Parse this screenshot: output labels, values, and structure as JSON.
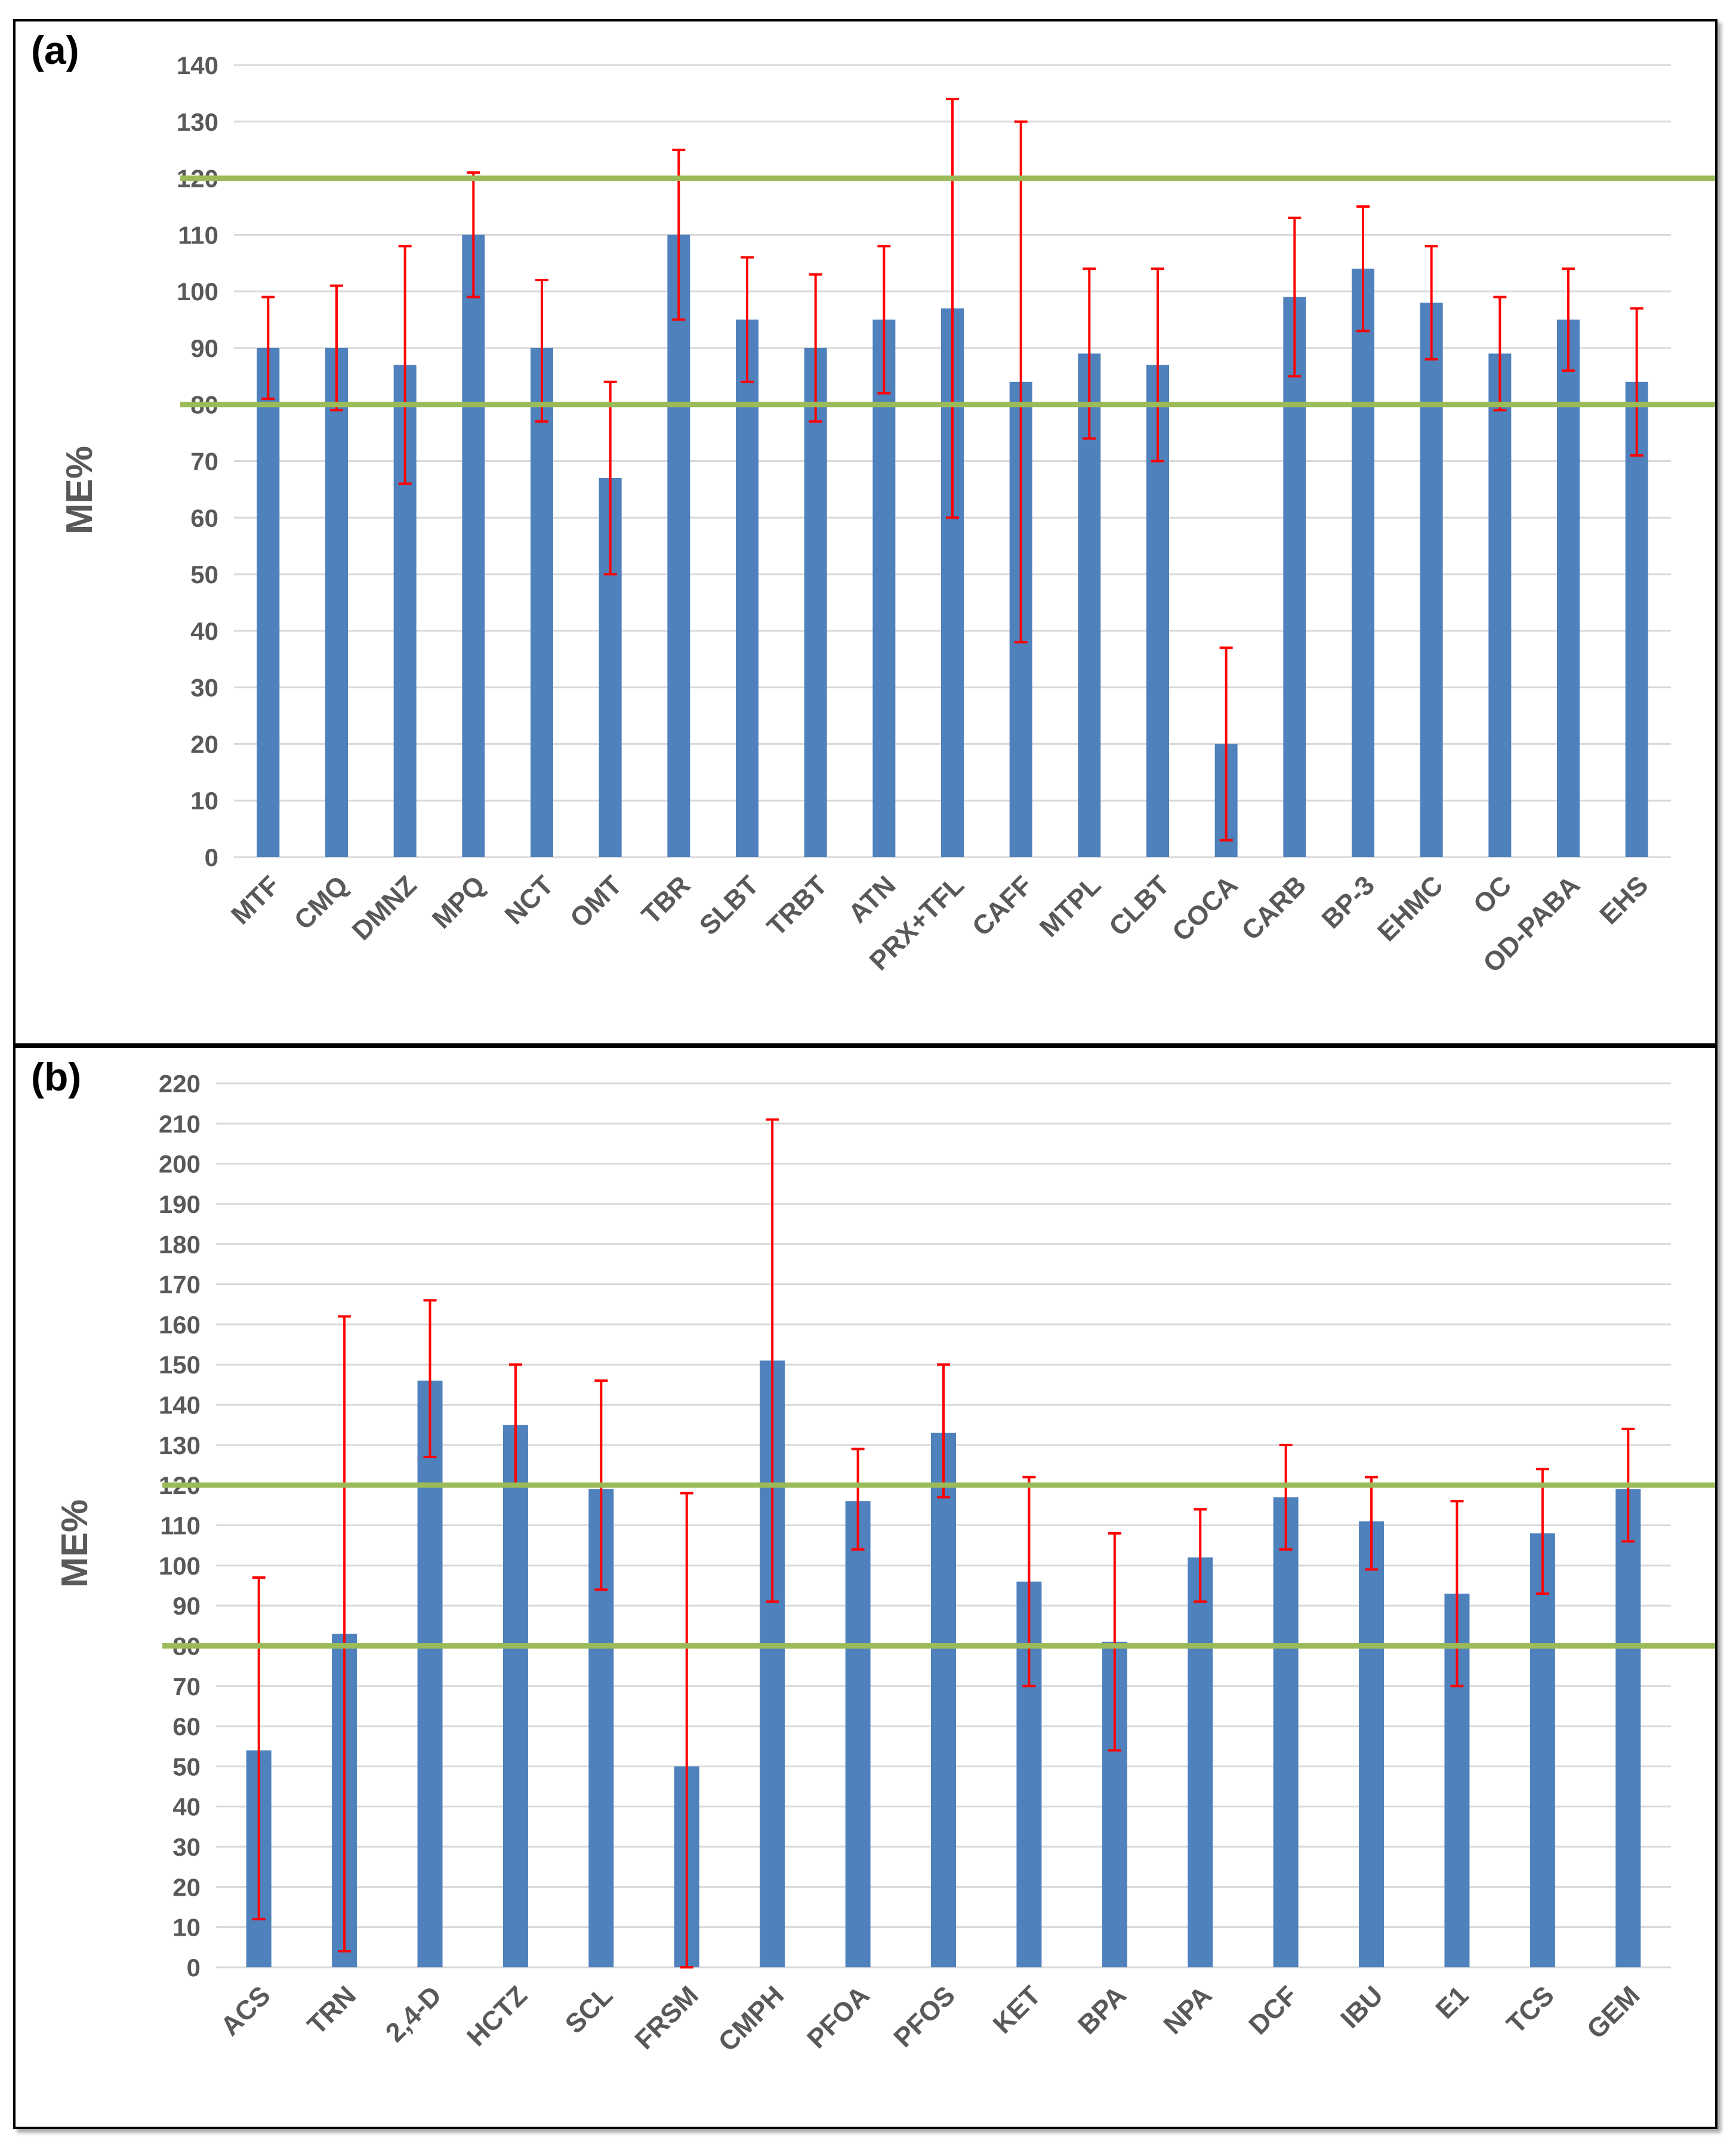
{
  "colors": {
    "bar": "#4f81bd",
    "error_bar": "#ff0000",
    "threshold_line": "#9bbb59",
    "grid": "#d9d9d9",
    "axis_text": "#595959"
  },
  "chart_data": [
    {
      "panel_label": "(a)",
      "type": "bar",
      "ylabel": "ME%",
      "ylim": [
        0,
        140
      ],
      "ytick_step": 10,
      "yticks": [
        "0",
        "10",
        "20",
        "30",
        "40",
        "50",
        "60",
        "70",
        "80",
        "90",
        "100",
        "110",
        "120",
        "130",
        "140"
      ],
      "grid": true,
      "thresholds": [
        80,
        120
      ],
      "categories": [
        "MTF",
        "CMQ",
        "DMNZ",
        "MPQ",
        "NCT",
        "OMT",
        "TBR",
        "SLBT",
        "TRBT",
        "ATN",
        "PRX+TFL",
        "CAFF",
        "MTPL",
        "CLBT",
        "COCA",
        "CARB",
        "BP-3",
        "EHMC",
        "OC",
        "OD-PABA",
        "EHS"
      ],
      "values": [
        90,
        90,
        87,
        110,
        90,
        67,
        110,
        95,
        90,
        95,
        97,
        84,
        89,
        87,
        20,
        99,
        104,
        98,
        89,
        95,
        84
      ],
      "error_low": [
        81,
        79,
        66,
        99,
        77,
        50,
        95,
        84,
        77,
        82,
        60,
        38,
        74,
        70,
        3,
        85,
        93,
        88,
        79,
        86,
        71
      ],
      "error_high": [
        99,
        101,
        108,
        121,
        102,
        84,
        125,
        106,
        103,
        108,
        134,
        130,
        104,
        104,
        37,
        113,
        115,
        108,
        99,
        104,
        97
      ]
    },
    {
      "panel_label": "(b)",
      "type": "bar",
      "ylabel": "ME%",
      "ylim": [
        0,
        220
      ],
      "ytick_step": 10,
      "yticks": [
        "0",
        "10",
        "20",
        "30",
        "40",
        "50",
        "60",
        "70",
        "80",
        "90",
        "100",
        "110",
        "120",
        "130",
        "140",
        "150",
        "160",
        "170",
        "180",
        "190",
        "200",
        "210",
        "220"
      ],
      "grid": true,
      "thresholds": [
        80,
        120
      ],
      "categories": [
        "ACS",
        "TRN",
        "2,4-D",
        "HCTZ",
        "SCL",
        "FRSM",
        "CMPH",
        "PFOA",
        "PFOS",
        "KET",
        "BPA",
        "NPA",
        "DCF",
        "IBU",
        "E1",
        "TCS",
        "GEM"
      ],
      "values": [
        54,
        83,
        146,
        135,
        119,
        50,
        151,
        116,
        133,
        96,
        81,
        102,
        117,
        111,
        93,
        108,
        119
      ],
      "error_low": [
        12,
        4,
        127,
        120,
        94,
        0,
        91,
        104,
        117,
        70,
        54,
        91,
        104,
        99,
        70,
        93,
        106
      ],
      "error_high": [
        97,
        162,
        166,
        150,
        146,
        118,
        211,
        129,
        150,
        122,
        108,
        114,
        130,
        122,
        116,
        124,
        134
      ]
    }
  ]
}
